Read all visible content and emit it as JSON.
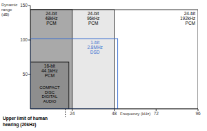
{
  "chart_data": {
    "type": "rect",
    "x_label": "Frequency (kHz)",
    "y_label": "Dynamic range (dB)",
    "xlim": [
      0,
      96
    ],
    "ylim": [
      0,
      150
    ],
    "xticks": [
      24,
      48,
      72,
      96
    ],
    "yticks": [
      50,
      100,
      150
    ],
    "grid": false,
    "series": [
      {
        "name": "24-bit 192kHz PCM",
        "color": "#ffffff",
        "type": "fill",
        "x": 96,
        "y": 144
      },
      {
        "name": "24-bit 96kHz PCM",
        "color": "#e8e8e8",
        "type": "fill",
        "x": 48,
        "y": 144
      },
      {
        "name": "24-bit 48kHz PCM",
        "color": "#a9a9a9",
        "type": "fill",
        "x": 24,
        "y": 144
      },
      {
        "name": "16-bit 44.1kHz PCM",
        "note": "COMPACT DISC DIGITAL AUDIO",
        "color": "#8e8e8e",
        "type": "fill",
        "x": 22.05,
        "y": 68
      },
      {
        "name": "1-bit 2.8MHz DSD",
        "color": "#3a6fd0",
        "type": "outline",
        "x": 50,
        "y": 102
      }
    ],
    "annotations": [
      {
        "text": "Upper limit of human hearing (20kHz)",
        "x": 20
      }
    ]
  }
}
